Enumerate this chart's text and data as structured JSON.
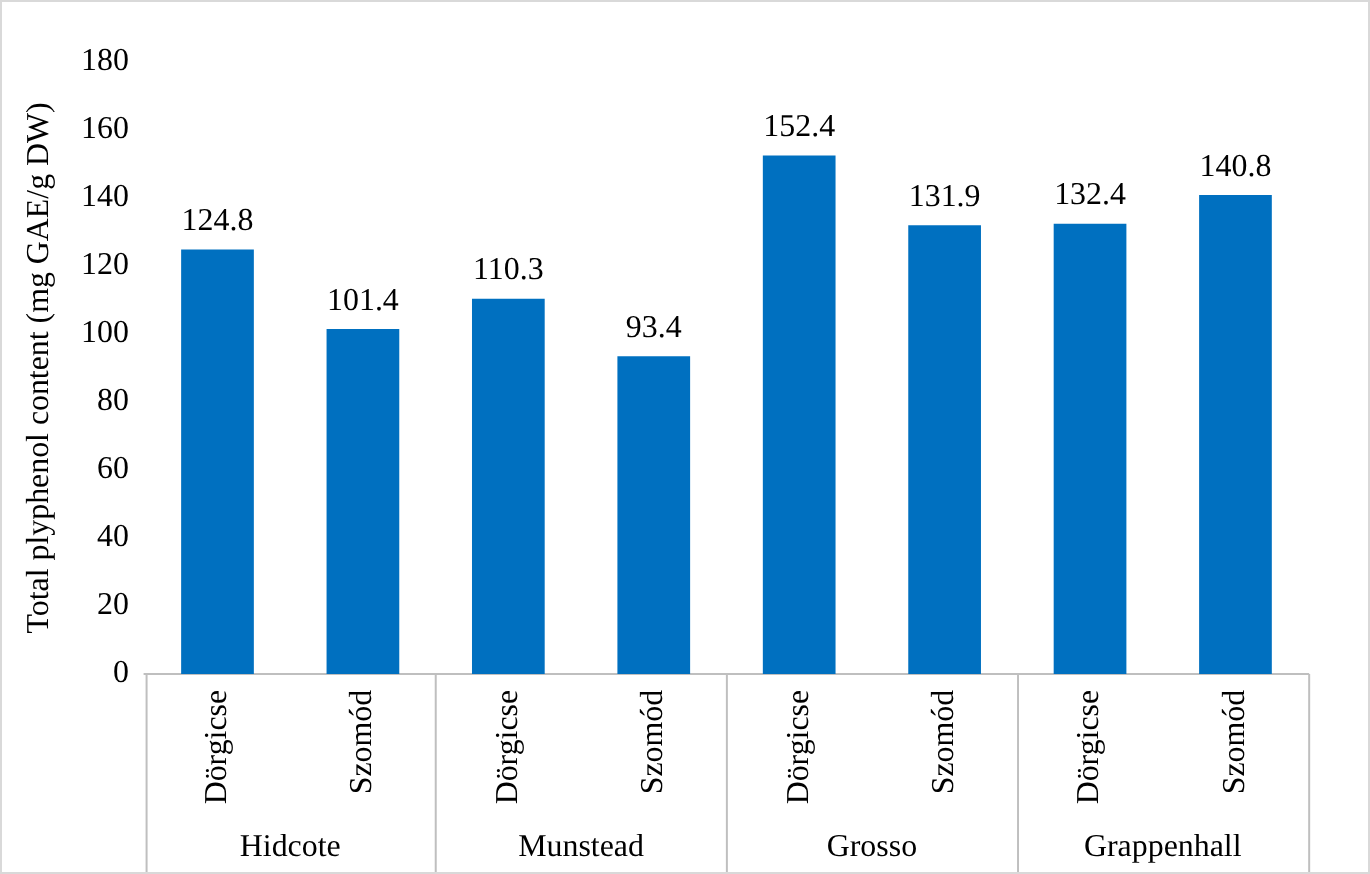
{
  "chart_data": {
    "type": "bar",
    "ylabel": "Total plyphenol content (mg GAE/g DW)",
    "categories": [
      "Dörgicse",
      "Szomód",
      "Dörgicse",
      "Szomód",
      "Dörgicse",
      "Szomód",
      "Dörgicse",
      "Szomód"
    ],
    "values": [
      124.8,
      101.4,
      110.3,
      93.4,
      152.4,
      131.9,
      132.4,
      140.8
    ],
    "color": "#0070c0",
    "ylim": [
      0,
      180
    ],
    "yticks": [
      0,
      20,
      40,
      60,
      80,
      100,
      120,
      140,
      160,
      180
    ],
    "grid": false,
    "legend": false,
    "data_labels": true,
    "annotations": [
      "Hidcote",
      "Munstead",
      "Grosso",
      "Grappenhall"
    ]
  }
}
